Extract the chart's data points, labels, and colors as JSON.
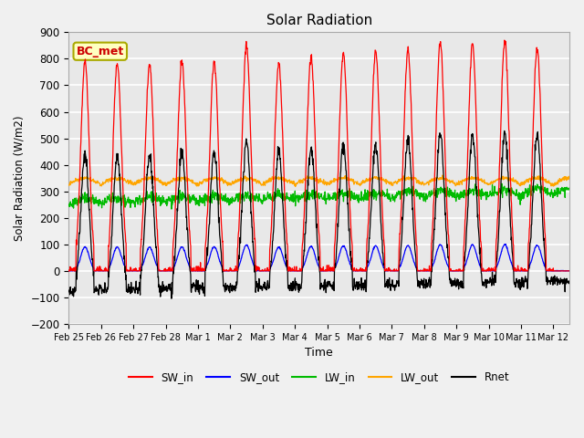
{
  "title": "Solar Radiation",
  "xlabel": "Time",
  "ylabel": "Solar Radiation (W/m2)",
  "ylim": [
    -200,
    900
  ],
  "yticks": [
    -200,
    -100,
    0,
    100,
    200,
    300,
    400,
    500,
    600,
    700,
    800,
    900
  ],
  "background_color": "#f0f0f0",
  "plot_bg_color": "#e8e8e8",
  "grid_color": "#ffffff",
  "colors": {
    "SW_in": "#ff0000",
    "SW_out": "#0000ff",
    "LW_in": "#00bb00",
    "LW_out": "#ffa500",
    "Rnet": "#000000"
  },
  "legend_labels": [
    "SW_in",
    "SW_out",
    "LW_in",
    "LW_out",
    "Rnet"
  ],
  "annotation_text": "BC_met",
  "tick_labels": [
    "Feb 25",
    "Feb 26",
    "Feb 27",
    "Feb 28",
    "Mar 1",
    "Mar 2",
    "Mar 3",
    "Mar 4",
    "Mar 5",
    "Mar 6",
    "Mar 7",
    "Mar 8",
    "Mar 9",
    "Mar 10",
    "Mar 11",
    "Mar 12"
  ],
  "xlim": [
    0,
    15.5
  ],
  "sw_in_peaks": [
    790,
    780,
    780,
    790,
    790,
    850,
    780,
    805,
    820,
    825,
    830,
    860,
    855,
    860,
    840
  ],
  "lw_in_base": 250,
  "lw_out_base": 325,
  "rnet_night": -80
}
